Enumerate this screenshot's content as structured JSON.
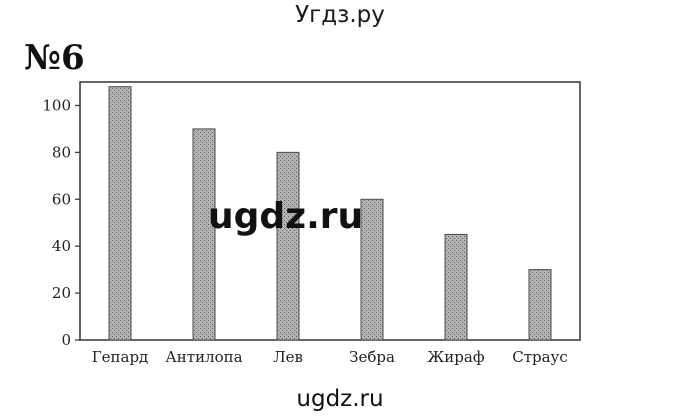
{
  "header": {
    "site": "Угдз.ру"
  },
  "task": {
    "number": "№6"
  },
  "watermark": "ugdz.ru",
  "footer": {
    "site": "ugdz.ru"
  },
  "chart_data": {
    "type": "bar",
    "categories": [
      "Гепард",
      "Антилопа",
      "Лев",
      "Зебра",
      "Жираф",
      "Страус"
    ],
    "values": [
      108,
      90,
      80,
      60,
      45,
      30
    ],
    "yticks": [
      0,
      20,
      40,
      60,
      80,
      100
    ],
    "ylim": [
      0,
      110
    ],
    "title": "",
    "xlabel": "",
    "ylabel": "",
    "grid": false,
    "bar_color": "#a6a6a6",
    "frame_color": "#333333"
  }
}
